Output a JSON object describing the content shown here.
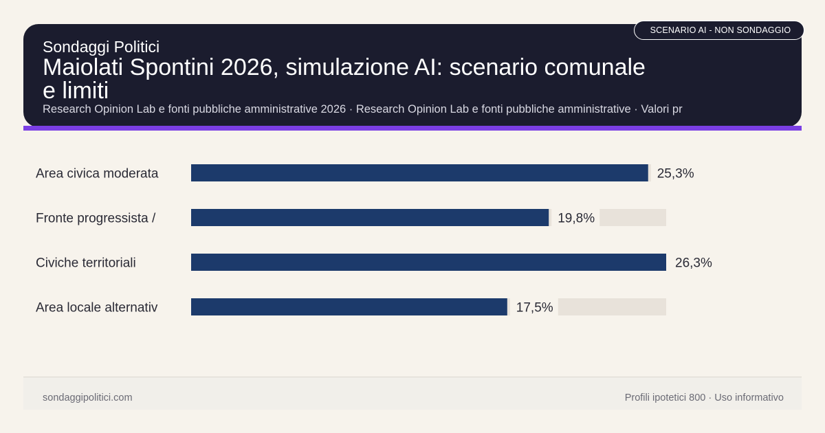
{
  "header": {
    "brand": "Sondaggi Politici",
    "title": "Maiolati Spontini 2026, simulazione AI: scenario comunale e limiti",
    "subtitle": "Research Opinion Lab e fonti pubbliche amministrative 2026 · Research Opinion Lab e fonti pubbliche amministrative · Valori pr",
    "badge": "SCENARIO AI - NON SONDAGGIO"
  },
  "colors": {
    "header_bg": "#1b1c2e",
    "accent": "#7b3fe4",
    "bar": "#1c3a6b",
    "track": "#e8e2da"
  },
  "chart_data": {
    "type": "bar",
    "orientation": "horizontal",
    "categories": [
      "Area civica moderata",
      "Fronte progressista /",
      "Civiche territoriali",
      "Area locale alternativ"
    ],
    "values": [
      25.3,
      19.8,
      26.3,
      17.5
    ],
    "value_labels": [
      "25,3%",
      "19,8%",
      "26,3%",
      "17,5%"
    ],
    "xlim": [
      0,
      26.3
    ],
    "grid": false,
    "legend": "none"
  },
  "footer": {
    "left": "sondaggipolitici.com",
    "right": "Profili ipotetici 800 · Uso informativo"
  }
}
